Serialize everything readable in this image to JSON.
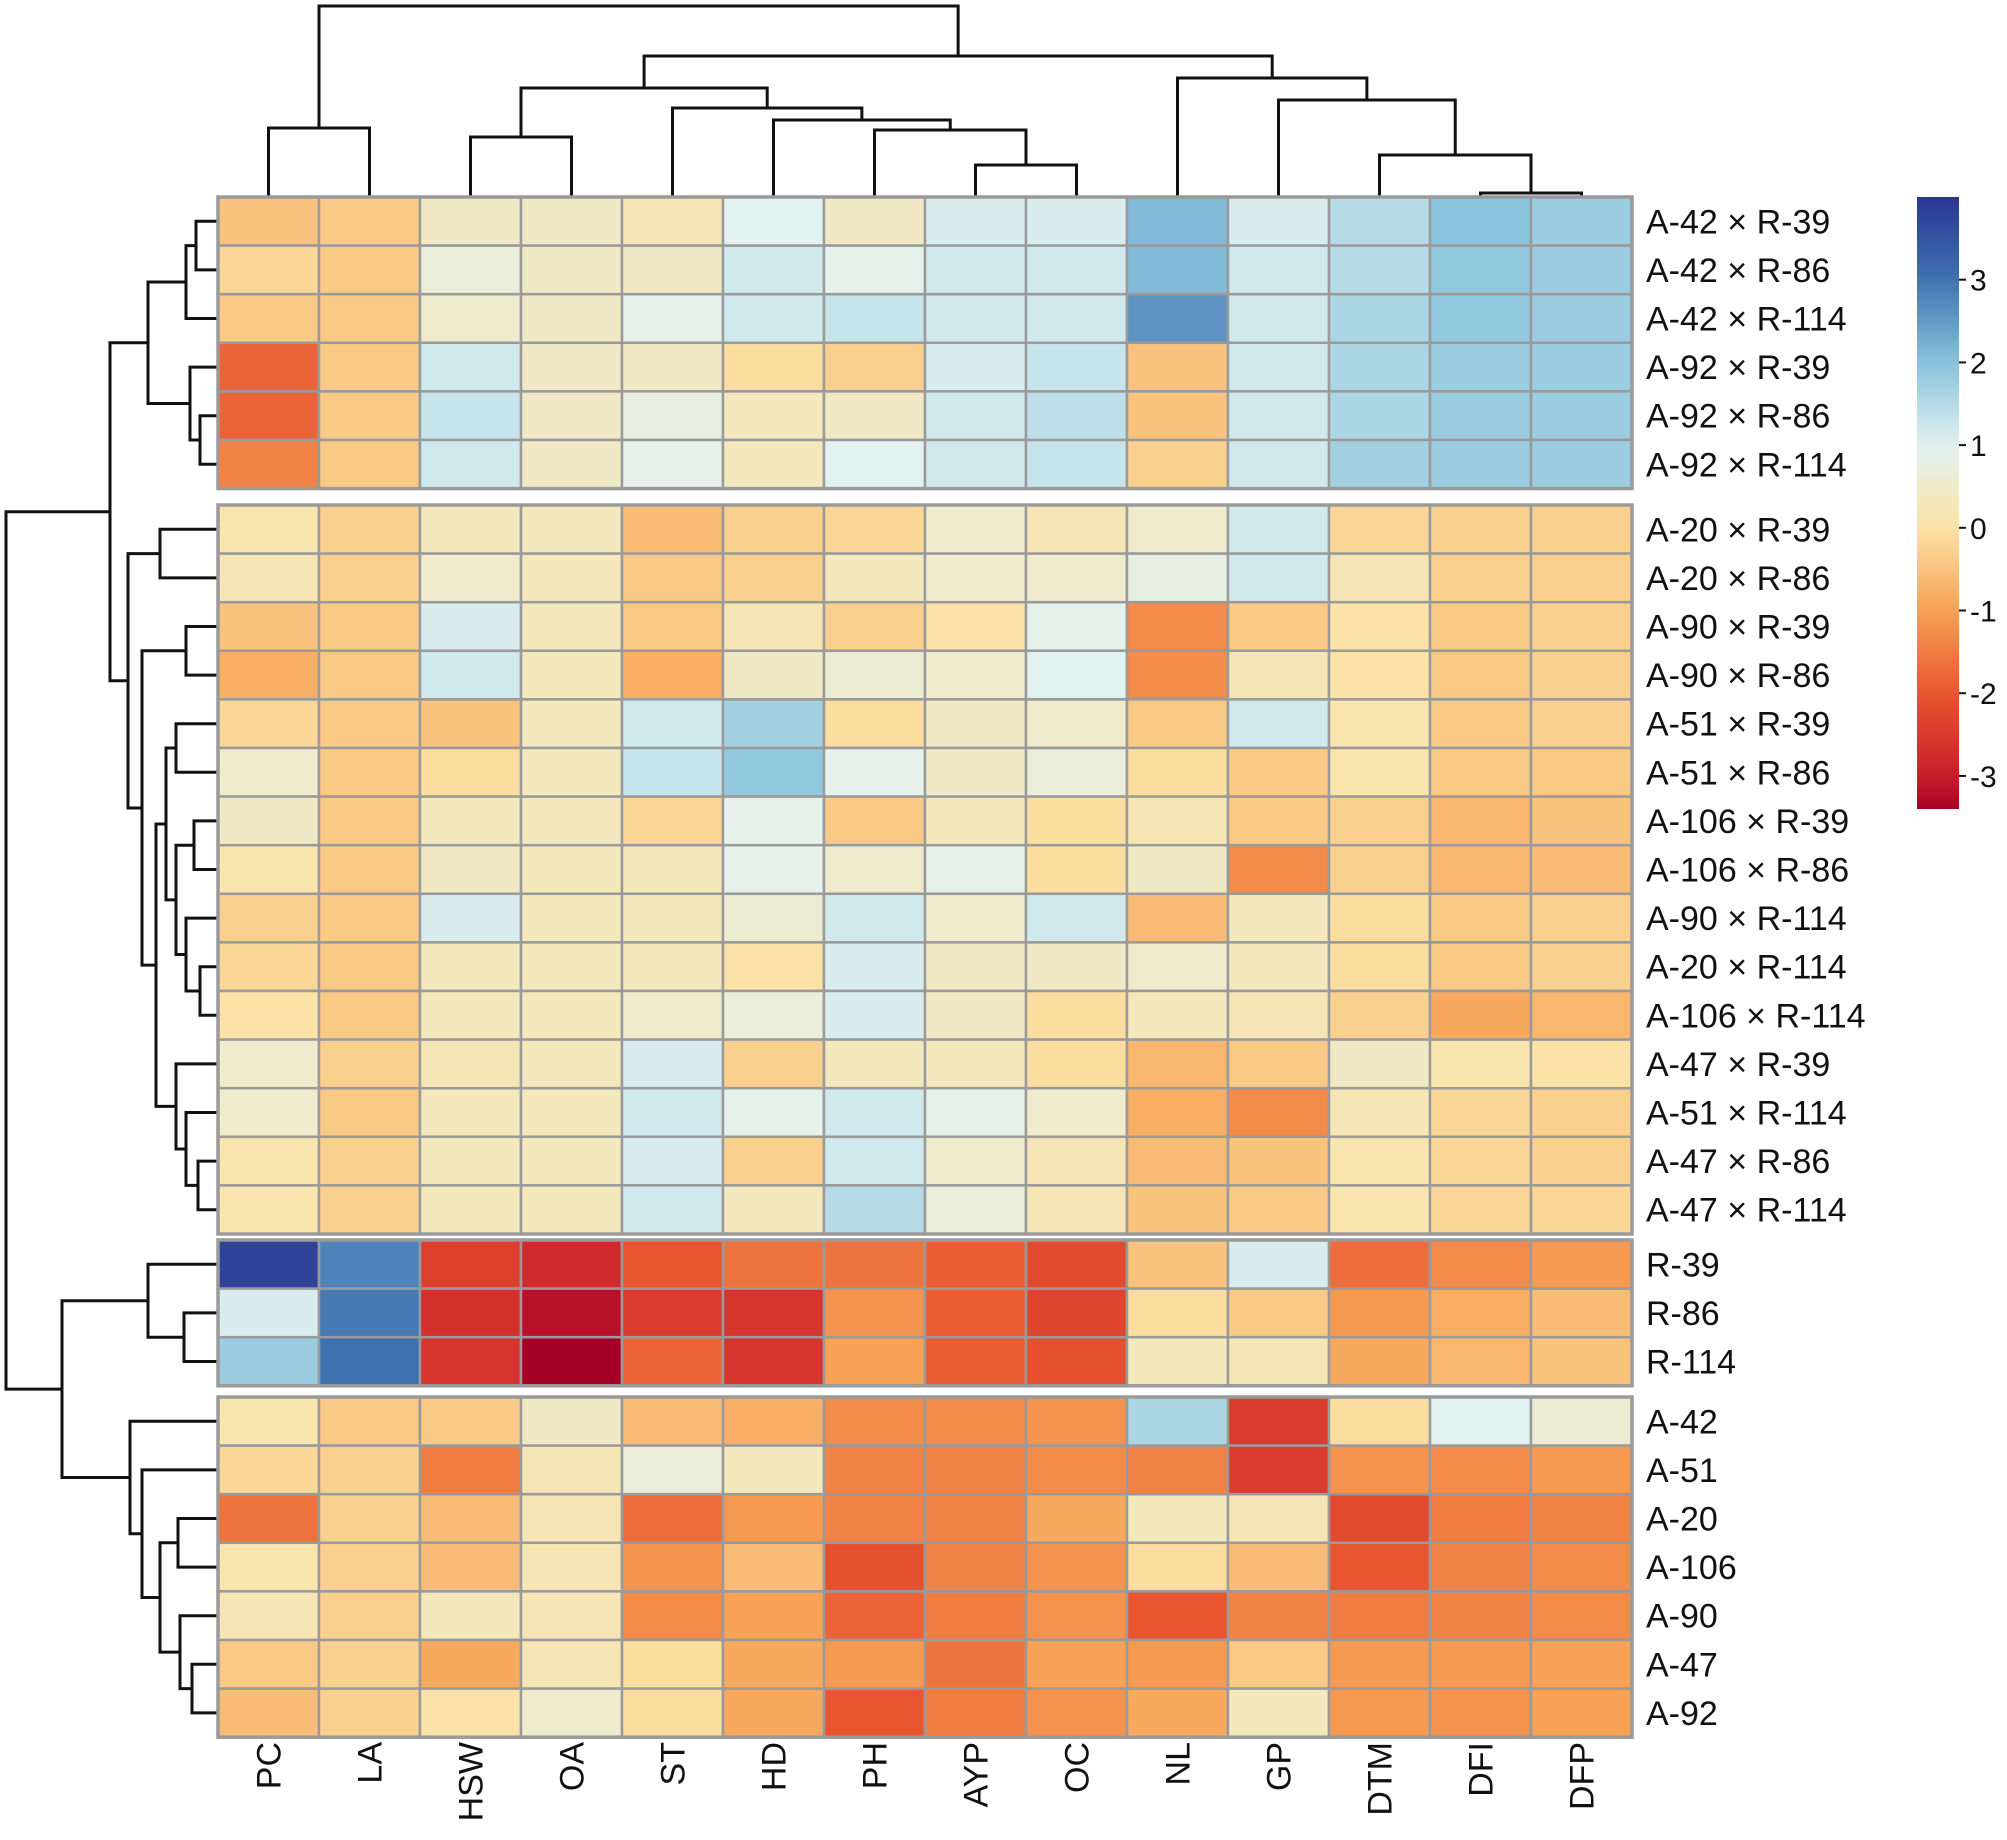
{
  "chart_data": {
    "type": "heatmap",
    "title": "",
    "columns": [
      "PC",
      "LA",
      "HSW",
      "OA",
      "ST",
      "HD",
      "PH",
      "AYP",
      "OC",
      "NL",
      "GP",
      "DTM",
      "DFI",
      "DFP"
    ],
    "row_groups": [
      {
        "rows": [
          {
            "label": "A-42 × R-39",
            "values": [
              -0.5,
              -0.4,
              0.4,
              0.4,
              0.2,
              1.0,
              0.4,
              1.1,
              1.1,
              2.1,
              1.1,
              1.5,
              2.0,
              1.8
            ]
          },
          {
            "label": "A-42 × R-86",
            "values": [
              -0.2,
              -0.4,
              0.7,
              0.4,
              0.4,
              1.2,
              0.9,
              1.2,
              1.2,
              2.1,
              1.2,
              1.5,
              1.9,
              1.8
            ]
          },
          {
            "label": "A-42 × R-114",
            "values": [
              -0.4,
              -0.4,
              0.5,
              0.4,
              0.9,
              1.2,
              1.3,
              1.2,
              1.2,
              2.6,
              1.2,
              1.6,
              1.9,
              1.8
            ]
          },
          {
            "label": "A-92 × R-39",
            "values": [
              -1.8,
              -0.4,
              1.2,
              0.4,
              0.4,
              -0.1,
              -0.3,
              1.1,
              1.3,
              -0.5,
              1.2,
              1.6,
              1.8,
              1.8
            ]
          },
          {
            "label": "A-92 × R-86",
            "values": [
              -1.8,
              -0.4,
              1.3,
              0.4,
              0.8,
              0.3,
              0.4,
              1.2,
              1.4,
              -0.5,
              1.2,
              1.6,
              1.8,
              1.8
            ]
          },
          {
            "label": "A-92 × R-114",
            "values": [
              -1.4,
              -0.4,
              1.2,
              0.4,
              0.9,
              0.3,
              1.0,
              1.2,
              1.3,
              -0.3,
              1.2,
              1.7,
              1.8,
              1.8
            ]
          }
        ]
      },
      {
        "rows": [
          {
            "label": "A-20 × R-39",
            "values": [
              0.1,
              -0.3,
              0.3,
              0.3,
              -0.6,
              -0.3,
              -0.2,
              0.5,
              0.2,
              0.5,
              1.2,
              -0.2,
              -0.3,
              -0.3
            ]
          },
          {
            "label": "A-20 × R-86",
            "values": [
              0.2,
              -0.3,
              0.5,
              0.3,
              -0.4,
              -0.3,
              0.3,
              0.5,
              0.5,
              0.8,
              1.2,
              0.2,
              -0.3,
              -0.3
            ]
          },
          {
            "label": "A-90 × R-39",
            "values": [
              -0.5,
              -0.4,
              1.1,
              0.3,
              -0.4,
              0.2,
              -0.3,
              0.0,
              0.9,
              -1.3,
              -0.4,
              0.0,
              -0.4,
              -0.3
            ]
          },
          {
            "label": "A-90 × R-86",
            "values": [
              -0.8,
              -0.4,
              1.2,
              0.3,
              -0.8,
              0.4,
              0.6,
              0.5,
              1.0,
              -1.3,
              0.2,
              0.0,
              -0.4,
              -0.3
            ]
          },
          {
            "label": "A-51 × R-39",
            "values": [
              -0.2,
              -0.4,
              -0.5,
              0.3,
              1.2,
              1.7,
              -0.1,
              0.4,
              0.5,
              -0.4,
              1.2,
              0.1,
              -0.4,
              -0.3
            ]
          },
          {
            "label": "A-51 × R-86",
            "values": [
              0.5,
              -0.4,
              -0.1,
              0.3,
              1.3,
              1.9,
              0.9,
              0.4,
              0.7,
              -0.1,
              -0.4,
              0.1,
              -0.4,
              -0.4
            ]
          },
          {
            "label": "A-106 × R-39",
            "values": [
              0.4,
              -0.4,
              0.3,
              0.3,
              -0.2,
              0.9,
              -0.4,
              0.3,
              -0.1,
              0.2,
              -0.4,
              -0.3,
              -0.7,
              -0.5
            ]
          },
          {
            "label": "A-106 × R-86",
            "values": [
              0.1,
              -0.4,
              0.4,
              0.3,
              0.3,
              0.9,
              0.5,
              0.9,
              -0.1,
              0.4,
              -1.3,
              -0.3,
              -0.7,
              -0.6
            ]
          },
          {
            "label": "A-90 × R-114",
            "values": [
              -0.3,
              -0.4,
              1.1,
              0.3,
              0.3,
              0.6,
              1.2,
              0.5,
              1.2,
              -0.6,
              0.3,
              -0.1,
              -0.4,
              -0.3
            ]
          },
          {
            "label": "A-20 × R-114",
            "values": [
              -0.2,
              -0.4,
              0.3,
              0.3,
              0.3,
              0.0,
              1.1,
              0.4,
              0.4,
              0.5,
              0.3,
              -0.1,
              -0.4,
              -0.3
            ]
          },
          {
            "label": "A-106 × R-114",
            "values": [
              0.0,
              -0.4,
              0.3,
              0.3,
              0.5,
              0.7,
              1.1,
              0.4,
              -0.1,
              0.3,
              0.2,
              -0.3,
              -0.9,
              -0.7
            ]
          },
          {
            "label": "A-47 × R-39",
            "values": [
              0.5,
              -0.3,
              0.2,
              0.3,
              1.1,
              -0.3,
              0.3,
              0.3,
              -0.1,
              -0.7,
              -0.4,
              0.4,
              0.1,
              0.0
            ]
          },
          {
            "label": "A-51 × R-114",
            "values": [
              0.5,
              -0.4,
              0.3,
              0.3,
              1.2,
              0.9,
              1.2,
              0.9,
              0.5,
              -0.8,
              -1.3,
              0.2,
              -0.2,
              -0.3
            ]
          },
          {
            "label": "A-47 × R-86",
            "values": [
              0.1,
              -0.3,
              0.3,
              0.3,
              1.1,
              -0.3,
              1.2,
              0.5,
              0.2,
              -0.6,
              -0.5,
              0.1,
              -0.2,
              -0.3
            ]
          },
          {
            "label": "A-47 × R-114",
            "values": [
              0.1,
              -0.3,
              0.3,
              0.3,
              1.2,
              0.3,
              1.5,
              0.7,
              0.2,
              -0.5,
              -0.4,
              0.1,
              -0.2,
              -0.2
            ]
          }
        ]
      },
      {
        "rows": [
          {
            "label": "R-39",
            "values": [
              3.8,
              2.8,
              -2.4,
              -2.8,
              -2.0,
              -1.6,
              -1.6,
              -1.9,
              -2.2,
              -0.5,
              1.1,
              -1.7,
              -1.3,
              -1.1
            ]
          },
          {
            "label": "R-86",
            "values": [
              1.1,
              2.9,
              -2.7,
              -3.2,
              -2.5,
              -2.6,
              -1.2,
              -1.9,
              -2.3,
              -0.1,
              -0.4,
              -1.1,
              -0.8,
              -0.6
            ]
          },
          {
            "label": "R-114",
            "values": [
              1.8,
              3.0,
              -2.6,
              -3.4,
              -1.8,
              -2.6,
              -1.0,
              -1.9,
              -2.1,
              0.3,
              0.2,
              -0.9,
              -0.7,
              -0.5
            ]
          }
        ]
      },
      {
        "rows": [
          {
            "label": "A-42",
            "values": [
              0.1,
              -0.4,
              -0.4,
              0.4,
              -0.6,
              -0.8,
              -1.3,
              -1.3,
              -1.2,
              1.6,
              -2.5,
              -0.1,
              1.0,
              0.6
            ]
          },
          {
            "label": "A-51",
            "values": [
              -0.2,
              -0.3,
              -1.5,
              0.2,
              0.7,
              0.3,
              -1.4,
              -1.4,
              -1.3,
              -1.4,
              -2.5,
              -1.2,
              -1.3,
              -1.1
            ]
          },
          {
            "label": "A-20",
            "values": [
              -1.6,
              -0.3,
              -0.6,
              0.2,
              -1.7,
              -1.1,
              -1.4,
              -1.4,
              -0.9,
              0.3,
              0.2,
              -2.2,
              -1.5,
              -1.4
            ]
          },
          {
            "label": "A-106",
            "values": [
              0.1,
              -0.3,
              -0.6,
              0.2,
              -1.2,
              -0.6,
              -2.1,
              -1.4,
              -1.2,
              -0.1,
              -0.6,
              -2.0,
              -1.4,
              -1.3
            ]
          },
          {
            "label": "A-90",
            "values": [
              0.2,
              -0.3,
              0.3,
              0.2,
              -1.3,
              -1.0,
              -1.8,
              -1.5,
              -1.2,
              -2.0,
              -1.4,
              -1.5,
              -1.4,
              -1.3
            ]
          },
          {
            "label": "A-47",
            "values": [
              -0.4,
              -0.3,
              -0.9,
              0.2,
              -0.1,
              -0.9,
              -1.1,
              -1.6,
              -1.0,
              -1.1,
              -0.4,
              -1.1,
              -1.1,
              -1.0
            ]
          },
          {
            "label": "A-92",
            "values": [
              -0.6,
              -0.3,
              0.0,
              0.5,
              -0.1,
              -0.9,
              -2.0,
              -1.5,
              -1.2,
              -0.9,
              0.3,
              -1.1,
              -1.2,
              -1.0
            ]
          }
        ]
      }
    ],
    "color_scale": {
      "domain": [
        -3.4,
        -3,
        -2,
        -1,
        0,
        1,
        2,
        3,
        4
      ],
      "colors": [
        "#a50026",
        "#c9202b",
        "#e8552f",
        "#f7a255",
        "#fbe3a7",
        "#e2f2f1",
        "#89c3dc",
        "#3f72b0",
        "#2b3593"
      ],
      "ticks": [
        "3",
        "2",
        "1",
        "0",
        "-1",
        "-2",
        "-3"
      ],
      "tick_values": [
        3,
        2,
        1,
        0,
        -1,
        -2,
        -3
      ]
    },
    "cell_border_color": "#9a9a9a",
    "dendrogram_color": "#111111"
  }
}
